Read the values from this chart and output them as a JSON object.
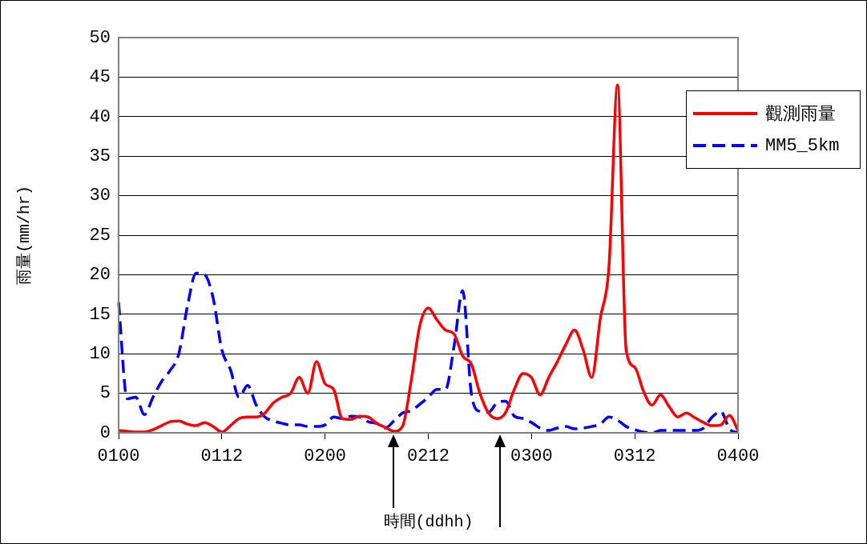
{
  "chart_data": {
    "type": "line",
    "xlabel": "時間(ddhh)",
    "ylabel": "雨量(mm/hr)",
    "categories": [
      "0100",
      null,
      null,
      null,
      null,
      null,
      null,
      null,
      null,
      null,
      null,
      null,
      "0112",
      null,
      null,
      null,
      null,
      null,
      null,
      null,
      null,
      null,
      null,
      null,
      "0200",
      null,
      null,
      null,
      null,
      null,
      null,
      null,
      null,
      null,
      null,
      null,
      "0212",
      null,
      null,
      null,
      null,
      null,
      null,
      null,
      null,
      null,
      null,
      null,
      "0300",
      null,
      null,
      null,
      null,
      null,
      null,
      null,
      null,
      null,
      null,
      null,
      "0312",
      null,
      null,
      null,
      null,
      null,
      null,
      null,
      null,
      null,
      null,
      null,
      "0400"
    ],
    "ylim": [
      0,
      50
    ],
    "yticks": [
      0,
      5,
      10,
      15,
      20,
      25,
      30,
      35,
      40,
      45,
      50
    ],
    "grid": "y",
    "legend": "right",
    "marker": "none",
    "series": [
      {
        "name": "觀測雨量",
        "color": "#ff0000",
        "line_style": "solid",
        "values": [
          0.3,
          0.2,
          0.1,
          0.1,
          0.4,
          0.9,
          1.4,
          1.5,
          1.1,
          0.9,
          1.3,
          0.8,
          0.1,
          0.9,
          1.8,
          2,
          2,
          2.5,
          3.8,
          4.5,
          5,
          7,
          5,
          9,
          6.2,
          5.5,
          1.8,
          1.7,
          2.1,
          2,
          1.2,
          0.7,
          0.2,
          0.8,
          6.5,
          13.5,
          15.8,
          14.3,
          13,
          12.5,
          9.7,
          8.7,
          5,
          2.5,
          1.8,
          2.6,
          5.5,
          7.5,
          7,
          4.8,
          7,
          9,
          11.2,
          13,
          10.5,
          7,
          14.5,
          21,
          44,
          10.5,
          8.3,
          5.3,
          3.5,
          4.8,
          3.3,
          2,
          2.5,
          1.9,
          1.3,
          0.9,
          1,
          2.2,
          0.3
        ]
      },
      {
        "name": "MM5_5km",
        "color": "#0000ff",
        "line_style": "dashed",
        "values": [
          16.5,
          4.3,
          4.5,
          2.3,
          4.5,
          6.5,
          7.9,
          10,
          16,
          20.2,
          20,
          17,
          10.5,
          8,
          4.5,
          6,
          3.5,
          2,
          1.5,
          1.2,
          1,
          1,
          0.8,
          0.8,
          1,
          2,
          1.8,
          2.1,
          2,
          1.4,
          1.2,
          0.6,
          1.5,
          2.5,
          2.8,
          3.6,
          4.5,
          5.5,
          5.5,
          11,
          18,
          5,
          2.7,
          2.6,
          3.8,
          4,
          2.1,
          1.8,
          1.3,
          0.6,
          0.3,
          0.6,
          0.8,
          0.5,
          0.6,
          0.8,
          1.1,
          2,
          1.6,
          0.8,
          0.4,
          0.1,
          0,
          0.3,
          0.3,
          0.3,
          0.3,
          0.3,
          0.6,
          2,
          2.7,
          0.5,
          0
        ]
      }
    ]
  }
}
